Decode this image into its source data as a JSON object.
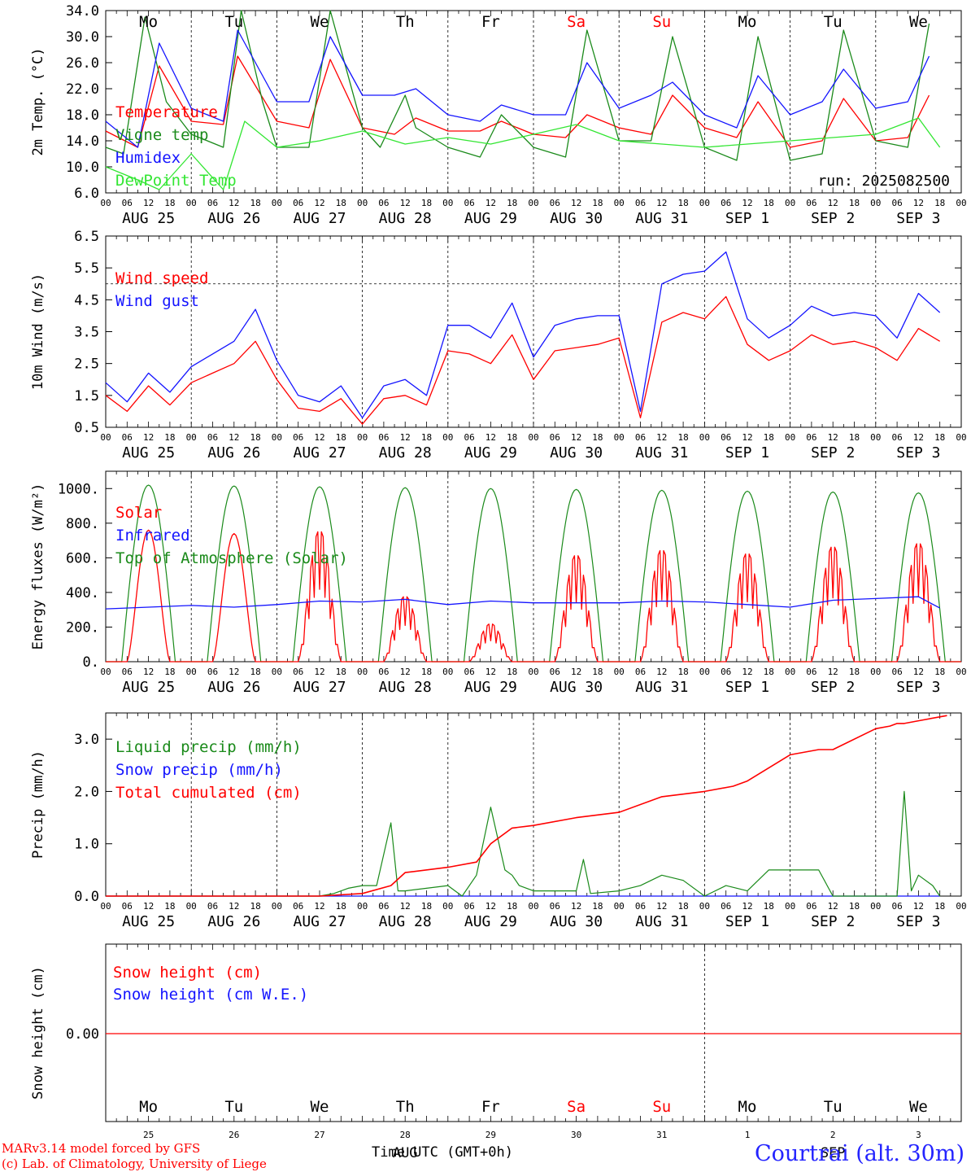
{
  "colors": {
    "red": "#ff0000",
    "green": "#1a8a1a",
    "blue": "#1414ff",
    "light_green": "#33e633",
    "grid": "#555555"
  },
  "x_axis": {
    "hour_ticks": [
      "00",
      "06",
      "12",
      "18"
    ],
    "final_tick": "00",
    "date_labels": [
      "AUG 25",
      "AUG 26",
      "AUG 27",
      "AUG 28",
      "AUG 29",
      "AUG 30",
      "AUG 31",
      "SEP  1",
      "SEP  2",
      "SEP  3"
    ],
    "weekdays": [
      "Mo",
      "Tu",
      "We",
      "Th",
      "Fr",
      "Sa",
      "Su",
      "Mo",
      "Tu",
      "We"
    ],
    "weekend_color_days": [
      5,
      6
    ],
    "day_numbers": [
      "25",
      "26",
      "27",
      "28",
      "29",
      "30",
      "31",
      "1",
      "2",
      "3"
    ],
    "bottom_month_labels": [
      "AUG",
      "SEP"
    ],
    "time_label": "Time UTC (GMT+0h)"
  },
  "run_label": "run: 2025082500",
  "footer": {
    "model_line": "MARv3.14 model forced by GFS",
    "credit_line": "(c) Lab. of Climatology, University of Liege",
    "station": "Courtrai (alt. 30m)"
  },
  "chart_data": [
    {
      "type": "line",
      "ylabel": "2m Temp. (°C)",
      "ylim": [
        6,
        34
      ],
      "yticks": [
        "34.0",
        "30.0",
        "26.0",
        "22.0",
        "18.0",
        "14.0",
        "10.0",
        "6.0"
      ],
      "x_unit": "hours since 2025-08-25 00 UTC",
      "series": [
        {
          "name": "Temperature",
          "color": "red",
          "x": [
            0,
            9,
            15,
            24,
            33,
            37,
            48,
            57,
            63,
            72,
            81,
            87,
            96,
            105,
            111,
            120,
            129,
            135,
            144,
            153,
            159,
            168,
            177,
            183,
            192,
            201,
            207,
            216,
            225,
            231
          ],
          "y": [
            15.5,
            13,
            25.5,
            17,
            16.5,
            27,
            17,
            16,
            26.5,
            16,
            15,
            17.5,
            15.5,
            15.5,
            17,
            15,
            14.5,
            18,
            16,
            15,
            21,
            16,
            14.5,
            20,
            13,
            14,
            20.5,
            14,
            14.5,
            21
          ]
        },
        {
          "name": "Vigne temp",
          "color": "green",
          "x": [
            0,
            5,
            11,
            17,
            24,
            33,
            38,
            44,
            48,
            57,
            63,
            72,
            77,
            84,
            87,
            96,
            105,
            111,
            120,
            129,
            135,
            144,
            153,
            159,
            168,
            177,
            183,
            192,
            201,
            207,
            216,
            225,
            231
          ],
          "y": [
            13,
            12,
            33,
            20,
            15,
            13,
            34,
            20,
            13,
            13,
            34,
            16,
            13,
            21,
            16,
            13,
            11.5,
            18,
            13,
            11.5,
            31,
            14,
            14,
            30,
            13,
            11,
            30,
            11,
            12,
            31,
            14,
            13,
            32
          ]
        },
        {
          "name": "Humidex",
          "color": "blue",
          "x": [
            0,
            9,
            15,
            24,
            33,
            37,
            48,
            57,
            63,
            72,
            81,
            87,
            96,
            105,
            111,
            120,
            129,
            135,
            144,
            153,
            159,
            168,
            177,
            183,
            192,
            201,
            207,
            216,
            225,
            231
          ],
          "y": [
            17,
            13,
            29,
            19,
            17,
            31,
            20,
            20,
            30,
            21,
            21,
            22,
            18,
            17,
            19.5,
            18,
            18,
            26,
            19,
            21,
            23,
            18,
            16,
            24,
            18,
            20,
            25,
            19,
            20,
            27
          ]
        },
        {
          "name": "DewPoint Temp",
          "color": "light_green",
          "x": [
            0,
            9,
            15,
            24,
            33,
            39,
            48,
            60,
            72,
            84,
            96,
            108,
            120,
            132,
            144,
            156,
            168,
            180,
            192,
            204,
            216,
            228,
            234
          ],
          "y": [
            10,
            8,
            6.5,
            12,
            6.5,
            17,
            13,
            14,
            15.5,
            13.5,
            14.5,
            13.5,
            15,
            16.5,
            14,
            13.5,
            13,
            13.5,
            14,
            14.5,
            15,
            17.5,
            13
          ]
        }
      ]
    },
    {
      "type": "line",
      "ylabel": "10m Wind (m/s)",
      "ylim": [
        0.5,
        6.5
      ],
      "yticks": [
        "6.5",
        "5.5",
        "4.5",
        "3.5",
        "2.5",
        "1.5",
        "0.5"
      ],
      "reference_line": 5.0,
      "series": [
        {
          "name": "Wind speed",
          "color": "red",
          "x": [
            0,
            6,
            12,
            18,
            24,
            30,
            36,
            42,
            48,
            54,
            60,
            66,
            72,
            78,
            84,
            90,
            96,
            102,
            108,
            114,
            120,
            126,
            132,
            138,
            144,
            150,
            156,
            162,
            168,
            174,
            180,
            186,
            192,
            198,
            204,
            210,
            216,
            222,
            228,
            234
          ],
          "y": [
            1.5,
            1,
            1.8,
            1.2,
            1.9,
            2.2,
            2.5,
            3.2,
            2,
            1.1,
            1,
            1.4,
            0.6,
            1.4,
            1.5,
            1.2,
            2.9,
            2.8,
            2.5,
            3.4,
            2,
            2.9,
            3,
            3.1,
            3.3,
            0.8,
            3.8,
            4.1,
            3.9,
            4.6,
            3.1,
            2.6,
            2.9,
            3.4,
            3.1,
            3.2,
            3,
            2.6,
            3.6,
            3.2
          ]
        },
        {
          "name": "Wind gust",
          "color": "blue",
          "x": [
            0,
            6,
            12,
            18,
            24,
            30,
            36,
            42,
            48,
            54,
            60,
            66,
            72,
            78,
            84,
            90,
            96,
            102,
            108,
            114,
            120,
            126,
            132,
            138,
            144,
            150,
            156,
            162,
            168,
            174,
            180,
            186,
            192,
            198,
            204,
            210,
            216,
            222,
            228,
            234
          ],
          "y": [
            1.9,
            1.3,
            2.2,
            1.6,
            2.4,
            2.8,
            3.2,
            4.2,
            2.6,
            1.5,
            1.3,
            1.8,
            0.8,
            1.8,
            2,
            1.5,
            3.7,
            3.7,
            3.3,
            4.4,
            2.7,
            3.7,
            3.9,
            4,
            4,
            1,
            5,
            5.3,
            5.4,
            6,
            3.9,
            3.3,
            3.7,
            4.3,
            4,
            4.1,
            4,
            3.3,
            4.7,
            4.1
          ]
        }
      ]
    },
    {
      "type": "line",
      "ylabel": "Energy fluxes (W/m²)",
      "ylim": [
        0,
        1100
      ],
      "yticks": [
        "1000.",
        "800.",
        "600.",
        "400.",
        "200.",
        "0."
      ],
      "series": [
        {
          "name": "Solar",
          "color": "red",
          "day_peaks": [
            760,
            740,
            760,
            380,
            220,
            620,
            650,
            630,
            670,
            690
          ]
        },
        {
          "name": "Infrared",
          "color": "blue",
          "x": [
            0,
            24,
            36,
            48,
            60,
            72,
            84,
            96,
            108,
            120,
            144,
            156,
            168,
            180,
            192,
            204,
            216,
            228,
            234
          ],
          "y": [
            305,
            325,
            315,
            330,
            350,
            345,
            360,
            330,
            350,
            340,
            340,
            350,
            345,
            330,
            315,
            355,
            365,
            375,
            310
          ]
        },
        {
          "name": "Top of Atmosphere (Solar)",
          "color": "green",
          "day_peaks": [
            1020,
            1015,
            1010,
            1005,
            1000,
            995,
            990,
            985,
            980,
            975
          ]
        }
      ]
    },
    {
      "type": "line",
      "ylabel": "Precip (mm/h)",
      "ylim": [
        0,
        3.5
      ],
      "yticks": [
        "3.0",
        "2.0",
        "1.0",
        "0.0"
      ],
      "series": [
        {
          "name": "Liquid precip (mm/h)",
          "color": "green",
          "x": [
            0,
            60,
            64,
            68,
            72,
            76,
            80,
            82,
            84,
            96,
            98,
            100,
            104,
            108,
            112,
            114,
            116,
            120,
            132,
            134,
            136,
            144,
            150,
            156,
            162,
            168,
            174,
            180,
            186,
            192,
            200,
            204,
            210,
            216,
            222,
            224,
            226,
            228,
            232,
            234
          ],
          "y": [
            0,
            0,
            0.05,
            0.15,
            0.2,
            0.2,
            1.4,
            0.1,
            0.1,
            0.2,
            0.1,
            0,
            0.4,
            1.7,
            0.5,
            0.4,
            0.2,
            0.1,
            0.1,
            0.7,
            0.05,
            0.1,
            0.2,
            0.4,
            0.3,
            0,
            0.2,
            0.1,
            0.5,
            0.5,
            0.5,
            0,
            0,
            0,
            0,
            2,
            0.1,
            0.4,
            0.2,
            0
          ]
        },
        {
          "name": "Snow precip (mm/h)",
          "color": "blue",
          "x": [
            0,
            234
          ],
          "y": [
            0,
            0
          ]
        },
        {
          "name": "Total cumulated (cm)",
          "color": "red",
          "x": [
            0,
            60,
            72,
            80,
            84,
            96,
            104,
            108,
            114,
            120,
            132,
            144,
            156,
            168,
            176,
            180,
            192,
            200,
            204,
            216,
            220,
            222,
            224,
            228,
            236
          ],
          "y": [
            0,
            0,
            0.05,
            0.2,
            0.45,
            0.55,
            0.65,
            1.0,
            1.3,
            1.35,
            1.5,
            1.6,
            1.9,
            2.0,
            2.1,
            2.2,
            2.7,
            2.8,
            2.8,
            3.2,
            3.25,
            3.3,
            3.3,
            3.35,
            3.45
          ]
        }
      ]
    },
    {
      "type": "line",
      "ylabel": "Snow height (cm)",
      "yticks": [
        "0.00"
      ],
      "series": [
        {
          "name": "Snow height (cm)",
          "color": "red",
          "x": [
            0,
            240
          ],
          "y": [
            0,
            0
          ]
        },
        {
          "name": "Snow height (cm W.E.)",
          "color": "blue",
          "x": [
            0,
            240
          ],
          "y": [
            0,
            0
          ]
        }
      ]
    }
  ]
}
